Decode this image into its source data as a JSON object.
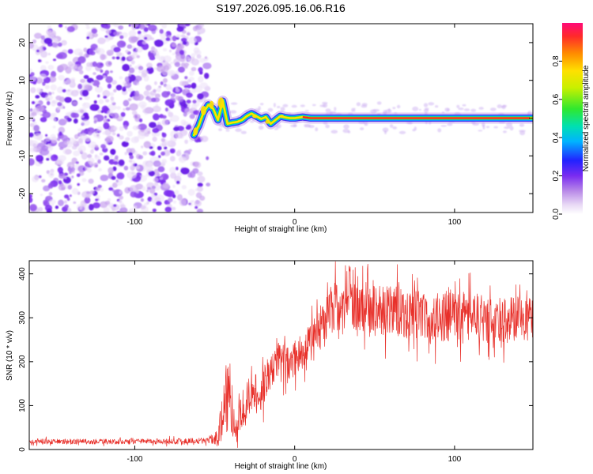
{
  "chart_data": [
    {
      "type": "heatmap",
      "title": "S197.2026.095.16.06.R16",
      "xlabel": "Height of straight line (km)",
      "ylabel": "Frequency (Hz)",
      "xlim": [
        -166,
        149
      ],
      "ylim": [
        -25,
        25
      ],
      "xticks": [
        -100,
        0,
        100
      ],
      "yticks": [
        -20,
        -10,
        0,
        10,
        20
      ],
      "noise_region_x": [
        -166,
        -60
      ],
      "trace": {
        "x": [
          -63,
          -60,
          -57,
          -54,
          -51,
          -48,
          -45,
          -42,
          -39,
          -36,
          -33,
          -30,
          -27,
          -24,
          -21,
          -18,
          -15,
          -12,
          -9,
          -6,
          -3,
          0,
          5,
          10,
          20,
          40,
          60,
          80,
          100,
          120,
          140,
          149
        ],
        "y": [
          -4.5,
          -2.0,
          1.5,
          3.5,
          2.5,
          -0.5,
          4.5,
          -1.5,
          -1.2,
          -1.0,
          -0.5,
          0.5,
          1.2,
          0.5,
          -0.2,
          0.3,
          -1.5,
          -0.5,
          0.5,
          0.2,
          0.0,
          0.0,
          0.3,
          0.0,
          0.0,
          0.0,
          0.0,
          0.0,
          0.0,
          0.0,
          0.0,
          0.0
        ]
      },
      "colorbar": {
        "label": "Normalized spectral amplitude",
        "range": [
          0.0,
          1.0
        ],
        "ticks": [
          0.0,
          0.2,
          0.4,
          0.6,
          0.8
        ],
        "tick_labels": [
          "0.0",
          "0.2",
          "0.4",
          "0.6",
          "0.8"
        ]
      }
    },
    {
      "type": "line",
      "xlabel": "Height of straight line (km)",
      "ylabel": "SNR (10 * v/v)",
      "xlim": [
        -166,
        149
      ],
      "ylim": [
        0,
        430
      ],
      "xticks": [
        -100,
        0,
        100
      ],
      "yticks": [
        0,
        100,
        200,
        300,
        400
      ],
      "color": "#e8302a",
      "envelope": {
        "x": [
          -166,
          -140,
          -100,
          -70,
          -52,
          -48,
          -45,
          -42,
          -40,
          -38,
          -35,
          -30,
          -25,
          -20,
          -15,
          -10,
          -5,
          0,
          5,
          10,
          15,
          20,
          25,
          30,
          40,
          50,
          60,
          70,
          80,
          90,
          100,
          110,
          120,
          130,
          140,
          149
        ],
        "mean": [
          18,
          18,
          18,
          19,
          22,
          30,
          70,
          140,
          120,
          75,
          85,
          115,
          125,
          135,
          180,
          200,
          190,
          205,
          225,
          245,
          270,
          305,
          330,
          320,
          325,
          318,
          315,
          312,
          308,
          300,
          305,
          302,
          295,
          292,
          300,
          305
        ],
        "spread": [
          10,
          10,
          10,
          11,
          14,
          40,
          110,
          160,
          130,
          80,
          85,
          80,
          75,
          80,
          70,
          70,
          75,
          70,
          70,
          75,
          80,
          90,
          95,
          90,
          95,
          100,
          100,
          100,
          100,
          100,
          95,
          95,
          90,
          90,
          80,
          80
        ]
      }
    }
  ]
}
